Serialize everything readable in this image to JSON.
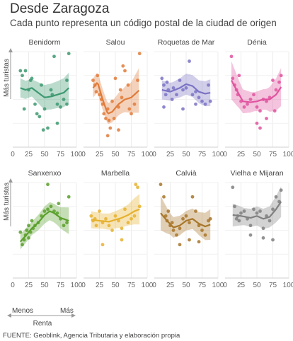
{
  "title": "Desde Zaragoza",
  "subtitle": "Cada punto representa un código postal de la ciudad de origen",
  "source": "FUENTE: Geoblink, Agencia Tributaria y elaboración propia",
  "axis": {
    "ylabel": "Más turistas",
    "xlabel": "Renta",
    "less_label": "Menos",
    "more_label": "Más",
    "x_ticks": [
      "0",
      "25",
      "50",
      "75",
      "100"
    ],
    "x_range": [
      0,
      100
    ],
    "y_range": [
      0,
      100
    ]
  },
  "chart_data": [
    {
      "type": "scatter",
      "name": "Benidorm",
      "color": "#3d9970",
      "points": [
        [
          12,
          80
        ],
        [
          15,
          75
        ],
        [
          20,
          80
        ],
        [
          25,
          60
        ],
        [
          28,
          70
        ],
        [
          30,
          72
        ],
        [
          35,
          45
        ],
        [
          38,
          35
        ],
        [
          42,
          32
        ],
        [
          45,
          65
        ],
        [
          50,
          40
        ],
        [
          55,
          20
        ],
        [
          60,
          60
        ],
        [
          62,
          55
        ],
        [
          65,
          95
        ],
        [
          70,
          45
        ],
        [
          75,
          42
        ],
        [
          80,
          50
        ],
        [
          85,
          70
        ],
        [
          88,
          98
        ],
        [
          85,
          45
        ],
        [
          18,
          40
        ],
        [
          48,
          18
        ],
        [
          70,
          25
        ]
      ],
      "trend": [
        [
          12,
          62
        ],
        [
          20,
          60
        ],
        [
          30,
          62
        ],
        [
          40,
          57
        ],
        [
          50,
          52
        ],
        [
          60,
          53
        ],
        [
          70,
          55
        ],
        [
          80,
          57
        ],
        [
          88,
          62
        ]
      ],
      "band_half": [
        [
          12,
          10
        ],
        [
          30,
          9
        ],
        [
          50,
          13
        ],
        [
          70,
          14
        ],
        [
          88,
          16
        ]
      ]
    },
    {
      "type": "scatter",
      "name": "Salou",
      "color": "#e07b39",
      "points": [
        [
          15,
          70
        ],
        [
          18,
          65
        ],
        [
          20,
          58
        ],
        [
          22,
          75
        ],
        [
          25,
          55
        ],
        [
          28,
          50
        ],
        [
          30,
          45
        ],
        [
          32,
          35
        ],
        [
          35,
          30
        ],
        [
          38,
          40
        ],
        [
          40,
          28
        ],
        [
          42,
          20
        ],
        [
          45,
          48
        ],
        [
          48,
          30
        ],
        [
          50,
          72
        ],
        [
          55,
          42
        ],
        [
          58,
          60
        ],
        [
          60,
          52
        ],
        [
          62,
          85
        ],
        [
          65,
          80
        ],
        [
          70,
          65
        ],
        [
          72,
          40
        ],
        [
          75,
          35
        ],
        [
          80,
          45
        ],
        [
          85,
          70
        ],
        [
          88,
          98
        ],
        [
          38,
          12
        ],
        [
          55,
          18
        ]
      ],
      "trend": [
        [
          15,
          62
        ],
        [
          22,
          68
        ],
        [
          30,
          50
        ],
        [
          38,
          35
        ],
        [
          45,
          37
        ],
        [
          55,
          45
        ],
        [
          65,
          50
        ],
        [
          75,
          52
        ],
        [
          88,
          60
        ]
      ],
      "band_half": [
        [
          15,
          10
        ],
        [
          30,
          11
        ],
        [
          45,
          11
        ],
        [
          60,
          12
        ],
        [
          75,
          16
        ],
        [
          88,
          24
        ]
      ]
    },
    {
      "type": "scatter",
      "name": "Roquetas de Mar",
      "color": "#7b73c4",
      "points": [
        [
          12,
          72
        ],
        [
          15,
          65
        ],
        [
          18,
          55
        ],
        [
          20,
          68
        ],
        [
          22,
          60
        ],
        [
          28,
          50
        ],
        [
          30,
          62
        ],
        [
          35,
          55
        ],
        [
          40,
          70
        ],
        [
          45,
          60
        ],
        [
          50,
          62
        ],
        [
          55,
          90
        ],
        [
          60,
          55
        ],
        [
          65,
          58
        ],
        [
          70,
          52
        ],
        [
          75,
          48
        ],
        [
          80,
          45
        ],
        [
          85,
          65
        ],
        [
          88,
          48
        ],
        [
          15,
          42
        ],
        [
          45,
          40
        ],
        [
          65,
          45
        ]
      ],
      "trend": [
        [
          12,
          60
        ],
        [
          25,
          58
        ],
        [
          40,
          62
        ],
        [
          50,
          66
        ],
        [
          60,
          64
        ],
        [
          70,
          58
        ],
        [
          80,
          56
        ],
        [
          88,
          57
        ]
      ],
      "band_half": [
        [
          12,
          10
        ],
        [
          30,
          9
        ],
        [
          50,
          11
        ],
        [
          70,
          12
        ],
        [
          88,
          14
        ]
      ]
    },
    {
      "type": "scatter",
      "name": "Dénia",
      "color": "#e0539f",
      "points": [
        [
          10,
          95
        ],
        [
          12,
          72
        ],
        [
          15,
          65
        ],
        [
          18,
          60
        ],
        [
          20,
          55
        ],
        [
          22,
          75
        ],
        [
          25,
          48
        ],
        [
          30,
          42
        ],
        [
          35,
          45
        ],
        [
          40,
          50
        ],
        [
          45,
          55
        ],
        [
          50,
          42
        ],
        [
          55,
          38
        ],
        [
          60,
          50
        ],
        [
          65,
          48
        ],
        [
          70,
          52
        ],
        [
          75,
          70
        ],
        [
          80,
          60
        ],
        [
          85,
          68
        ],
        [
          88,
          75
        ],
        [
          50,
          25
        ],
        [
          55,
          20
        ],
        [
          65,
          30
        ],
        [
          78,
          38
        ]
      ],
      "trend": [
        [
          10,
          70
        ],
        [
          18,
          60
        ],
        [
          28,
          48
        ],
        [
          40,
          47
        ],
        [
          50,
          48
        ],
        [
          60,
          50
        ],
        [
          70,
          50
        ],
        [
          80,
          55
        ],
        [
          88,
          63
        ]
      ],
      "band_half": [
        [
          10,
          20
        ],
        [
          25,
          13
        ],
        [
          45,
          10
        ],
        [
          65,
          11
        ],
        [
          88,
          20
        ]
      ]
    },
    {
      "type": "scatter",
      "name": "Sanxenxo",
      "color": "#5aa02c",
      "points": [
        [
          12,
          48
        ],
        [
          15,
          35
        ],
        [
          18,
          40
        ],
        [
          20,
          45
        ],
        [
          22,
          50
        ],
        [
          25,
          55
        ],
        [
          28,
          48
        ],
        [
          30,
          60
        ],
        [
          32,
          52
        ],
        [
          35,
          55
        ],
        [
          40,
          58
        ],
        [
          45,
          65
        ],
        [
          50,
          70
        ],
        [
          55,
          72
        ],
        [
          60,
          75
        ],
        [
          65,
          70
        ],
        [
          70,
          68
        ],
        [
          72,
          78
        ],
        [
          75,
          62
        ],
        [
          80,
          55
        ],
        [
          85,
          58
        ],
        [
          88,
          85
        ],
        [
          55,
          98
        ],
        [
          25,
          42
        ]
      ],
      "trend": [
        [
          12,
          38
        ],
        [
          20,
          44
        ],
        [
          30,
          52
        ],
        [
          40,
          58
        ],
        [
          50,
          66
        ],
        [
          58,
          70
        ],
        [
          65,
          68
        ],
        [
          75,
          63
        ],
        [
          88,
          60
        ]
      ],
      "band_half": [
        [
          12,
          8
        ],
        [
          30,
          7
        ],
        [
          50,
          9
        ],
        [
          70,
          10
        ],
        [
          88,
          14
        ]
      ]
    },
    {
      "type": "scatter",
      "name": "Marbella",
      "color": "#e6b12e",
      "points": [
        [
          12,
          65
        ],
        [
          15,
          60
        ],
        [
          18,
          62
        ],
        [
          20,
          55
        ],
        [
          25,
          70
        ],
        [
          30,
          58
        ],
        [
          35,
          62
        ],
        [
          40,
          55
        ],
        [
          45,
          50
        ],
        [
          50,
          65
        ],
        [
          55,
          60
        ],
        [
          60,
          52
        ],
        [
          65,
          72
        ],
        [
          70,
          58
        ],
        [
          75,
          62
        ],
        [
          80,
          65
        ],
        [
          82,
          98
        ],
        [
          85,
          95
        ],
        [
          88,
          75
        ],
        [
          30,
          35
        ],
        [
          60,
          40
        ]
      ],
      "trend": [
        [
          12,
          61
        ],
        [
          25,
          60
        ],
        [
          40,
          59
        ],
        [
          50,
          61
        ],
        [
          60,
          63
        ],
        [
          70,
          66
        ],
        [
          80,
          70
        ],
        [
          88,
          72
        ]
      ],
      "band_half": [
        [
          12,
          9
        ],
        [
          30,
          8
        ],
        [
          50,
          9
        ],
        [
          70,
          11
        ],
        [
          88,
          16
        ]
      ]
    },
    {
      "type": "scatter",
      "name": "Calvià",
      "color": "#a8762a",
      "points": [
        [
          10,
          98
        ],
        [
          15,
          85
        ],
        [
          18,
          65
        ],
        [
          20,
          60
        ],
        [
          22,
          70
        ],
        [
          25,
          55
        ],
        [
          28,
          58
        ],
        [
          30,
          50
        ],
        [
          35,
          45
        ],
        [
          40,
          52
        ],
        [
          45,
          62
        ],
        [
          50,
          65
        ],
        [
          55,
          58
        ],
        [
          60,
          85
        ],
        [
          65,
          70
        ],
        [
          70,
          55
        ],
        [
          75,
          50
        ],
        [
          80,
          45
        ],
        [
          85,
          60
        ],
        [
          88,
          62
        ],
        [
          40,
          35
        ],
        [
          55,
          40
        ],
        [
          70,
          38
        ]
      ],
      "trend": [
        [
          10,
          68
        ],
        [
          20,
          60
        ],
        [
          30,
          53
        ],
        [
          40,
          55
        ],
        [
          50,
          60
        ],
        [
          60,
          62
        ],
        [
          70,
          57
        ],
        [
          80,
          54
        ],
        [
          88,
          56
        ]
      ],
      "band_half": [
        [
          10,
          18
        ],
        [
          25,
          11
        ],
        [
          45,
          10
        ],
        [
          65,
          11
        ],
        [
          88,
          16
        ]
      ]
    },
    {
      "type": "scatter",
      "name": "Vielha e Mijaran",
      "color": "#808080",
      "points": [
        [
          12,
          95
        ],
        [
          15,
          75
        ],
        [
          18,
          62
        ],
        [
          20,
          65
        ],
        [
          22,
          60
        ],
        [
          25,
          68
        ],
        [
          30,
          70
        ],
        [
          35,
          62
        ],
        [
          40,
          55
        ],
        [
          45,
          72
        ],
        [
          50,
          68
        ],
        [
          55,
          70
        ],
        [
          60,
          52
        ],
        [
          65,
          65
        ],
        [
          70,
          60
        ],
        [
          75,
          72
        ],
        [
          80,
          85
        ],
        [
          85,
          80
        ],
        [
          88,
          92
        ],
        [
          40,
          45
        ],
        [
          60,
          42
        ],
        [
          75,
          40
        ]
      ],
      "trend": [
        [
          12,
          66
        ],
        [
          25,
          65
        ],
        [
          40,
          63
        ],
        [
          50,
          65
        ],
        [
          60,
          62
        ],
        [
          70,
          64
        ],
        [
          80,
          72
        ],
        [
          88,
          80
        ]
      ],
      "band_half": [
        [
          12,
          12
        ],
        [
          30,
          9
        ],
        [
          50,
          10
        ],
        [
          70,
          11
        ],
        [
          88,
          16
        ]
      ]
    }
  ]
}
